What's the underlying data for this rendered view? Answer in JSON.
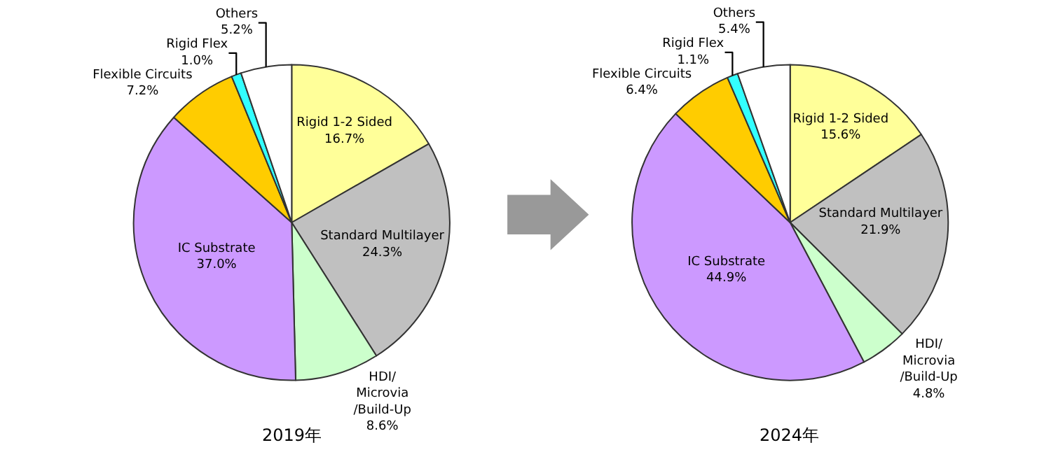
{
  "chart_data": [
    {
      "type": "pie",
      "title": "2019年",
      "categories": [
        "Rigid 1-2 Sided",
        "Standard Multilayer",
        "HDI/\nMicrovia\n/Build-Up",
        "IC Substrate",
        "Flexible Circuits",
        "Rigid Flex",
        "Others"
      ],
      "values": [
        16.7,
        24.3,
        8.6,
        37.0,
        7.2,
        1.0,
        5.2
      ],
      "value_labels": [
        "16.7%",
        "24.3%",
        "8.6%",
        "37.0%",
        "7.2%",
        "1.0%",
        "5.2%"
      ],
      "colors": [
        "#ffff99",
        "#c0c0c0",
        "#ccffcc",
        "#cc99ff",
        "#ffcc00",
        "#33ffff",
        "#ffffff"
      ],
      "legend": false
    },
    {
      "type": "pie",
      "title": "2024年",
      "categories": [
        "Rigid 1-2 Sided",
        "Standard Multilayer",
        "HDI/\nMicrovia\n/Build-Up",
        "IC Substrate",
        "Flexible Circuits",
        "Rigid Flex",
        "Others"
      ],
      "values": [
        15.6,
        21.9,
        4.8,
        44.9,
        6.4,
        1.1,
        5.4
      ],
      "value_labels": [
        "15.6%",
        "21.9%",
        "4.8%",
        "44.9%",
        "6.4%",
        "1.1%",
        "5.4%"
      ],
      "colors": [
        "#ffff99",
        "#c0c0c0",
        "#ccffcc",
        "#cc99ff",
        "#ffcc00",
        "#33ffff",
        "#ffffff"
      ],
      "legend": false
    }
  ]
}
